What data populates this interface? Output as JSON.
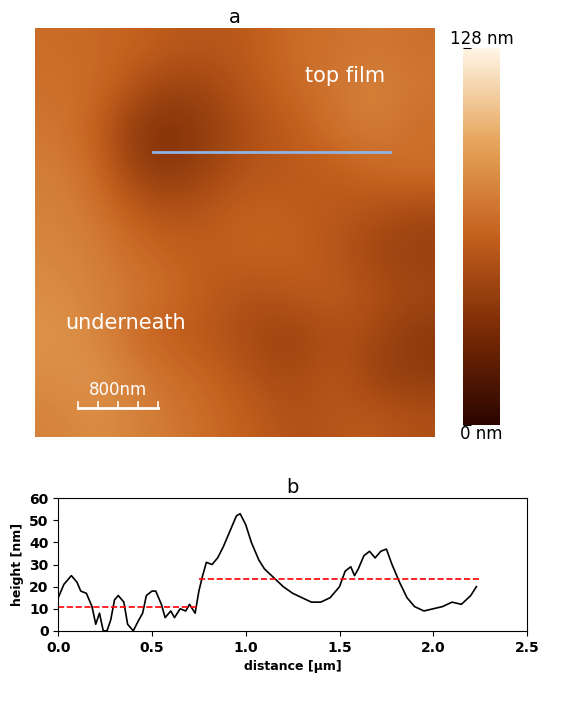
{
  "chart_data": [
    {
      "type": "heatmap",
      "title": "a",
      "tick_labels": false,
      "xlim": [
        0,
        4000
      ],
      "ylim": [
        0,
        4300
      ],
      "cells": [
        [
          70,
          68,
          65,
          60,
          58,
          62,
          70,
          72,
          75,
          72
        ],
        [
          72,
          70,
          55,
          45,
          50,
          60,
          68,
          75,
          80,
          75
        ],
        [
          75,
          65,
          40,
          35,
          45,
          55,
          62,
          72,
          78,
          70
        ],
        [
          78,
          70,
          45,
          40,
          50,
          58,
          60,
          62,
          68,
          72
        ],
        [
          80,
          75,
          62,
          55,
          60,
          65,
          62,
          60,
          55,
          50
        ],
        [
          82,
          78,
          70,
          65,
          62,
          66,
          64,
          58,
          48,
          45
        ],
        [
          85,
          80,
          75,
          68,
          60,
          55,
          60,
          62,
          55,
          50
        ],
        [
          88,
          82,
          70,
          62,
          58,
          50,
          45,
          55,
          50,
          40
        ],
        [
          85,
          88,
          78,
          70,
          65,
          55,
          50,
          60,
          45,
          42
        ],
        [
          80,
          85,
          80,
          75,
          68,
          62,
          55,
          58,
          60,
          55
        ]
      ],
      "colorbar_range": [
        0,
        128
      ],
      "colorbar_ticks": [
        {
          "value": 0,
          "label": "0 nm"
        },
        {
          "value": 128,
          "label": "128 nm"
        }
      ],
      "annotations": [
        {
          "text": "top film",
          "x": 2700,
          "y": 3800
        },
        {
          "text": "underneath",
          "x": 300,
          "y": 1200
        }
      ],
      "scale_bar": {
        "length": 800,
        "label": "800nm",
        "x": 430,
        "y": 300
      },
      "profile_line": {
        "x": [
          1180,
          3550
        ],
        "y": 3000,
        "color": "#8fb4e3"
      }
    },
    {
      "type": "line",
      "title": "b",
      "x_label": "distance [µm]",
      "y_label": "height [nm]",
      "xlim": [
        0,
        2.5
      ],
      "ylim": [
        0,
        60
      ],
      "xticks": [
        {
          "value": 0,
          "label": "0.0"
        },
        {
          "value": 0.5,
          "label": "0.5"
        },
        {
          "value": 1.0,
          "label": "1.0"
        },
        {
          "value": 1.5,
          "label": "1.5"
        },
        {
          "value": 2.0,
          "label": "2.0"
        },
        {
          "value": 2.5,
          "label": "2.5"
        }
      ],
      "yticks": [
        0,
        10,
        20,
        30,
        40,
        50,
        60
      ],
      "series": [
        {
          "color": "#000000",
          "line_style": "solid",
          "x": [
            0.0,
            0.03,
            0.07,
            0.1,
            0.12,
            0.15,
            0.18,
            0.2,
            0.22,
            0.24,
            0.26,
            0.28,
            0.3,
            0.32,
            0.35,
            0.37,
            0.4,
            0.43,
            0.45,
            0.47,
            0.5,
            0.52,
            0.55,
            0.57,
            0.6,
            0.62,
            0.65,
            0.68,
            0.7,
            0.73,
            0.75,
            0.77,
            0.79,
            0.82,
            0.85,
            0.88,
            0.92,
            0.95,
            0.97,
            1.0,
            1.03,
            1.07,
            1.1,
            1.15,
            1.2,
            1.25,
            1.3,
            1.35,
            1.4,
            1.45,
            1.5,
            1.53,
            1.56,
            1.58,
            1.6,
            1.63,
            1.66,
            1.69,
            1.72,
            1.75,
            1.78,
            1.82,
            1.86,
            1.9,
            1.95,
            2.0,
            2.05,
            2.1,
            2.15,
            2.2,
            2.23
          ],
          "values": [
            15,
            21,
            25,
            22,
            18,
            17,
            11,
            3,
            8,
            0,
            0,
            5,
            14,
            16,
            13,
            3,
            0,
            5,
            8,
            16,
            18,
            18,
            12,
            6,
            9,
            6,
            10,
            9,
            12,
            8,
            18,
            25,
            31,
            30,
            33,
            38,
            46,
            52,
            53,
            48,
            40,
            32,
            28,
            24,
            20,
            17,
            15,
            13,
            13,
            15,
            20,
            27,
            29,
            25,
            28,
            34,
            36,
            33,
            36,
            37,
            30,
            22,
            15,
            11,
            9,
            10,
            11,
            13,
            12,
            16,
            20
          ]
        },
        {
          "color": "#ff0000",
          "line_style": "dashed",
          "x": [
            0.0,
            0.75
          ],
          "values": [
            11,
            11
          ]
        },
        {
          "color": "#ff0000",
          "line_style": "dashed",
          "x": [
            0.75,
            2.25
          ],
          "values": [
            23.5,
            23.5
          ]
        }
      ]
    }
  ]
}
